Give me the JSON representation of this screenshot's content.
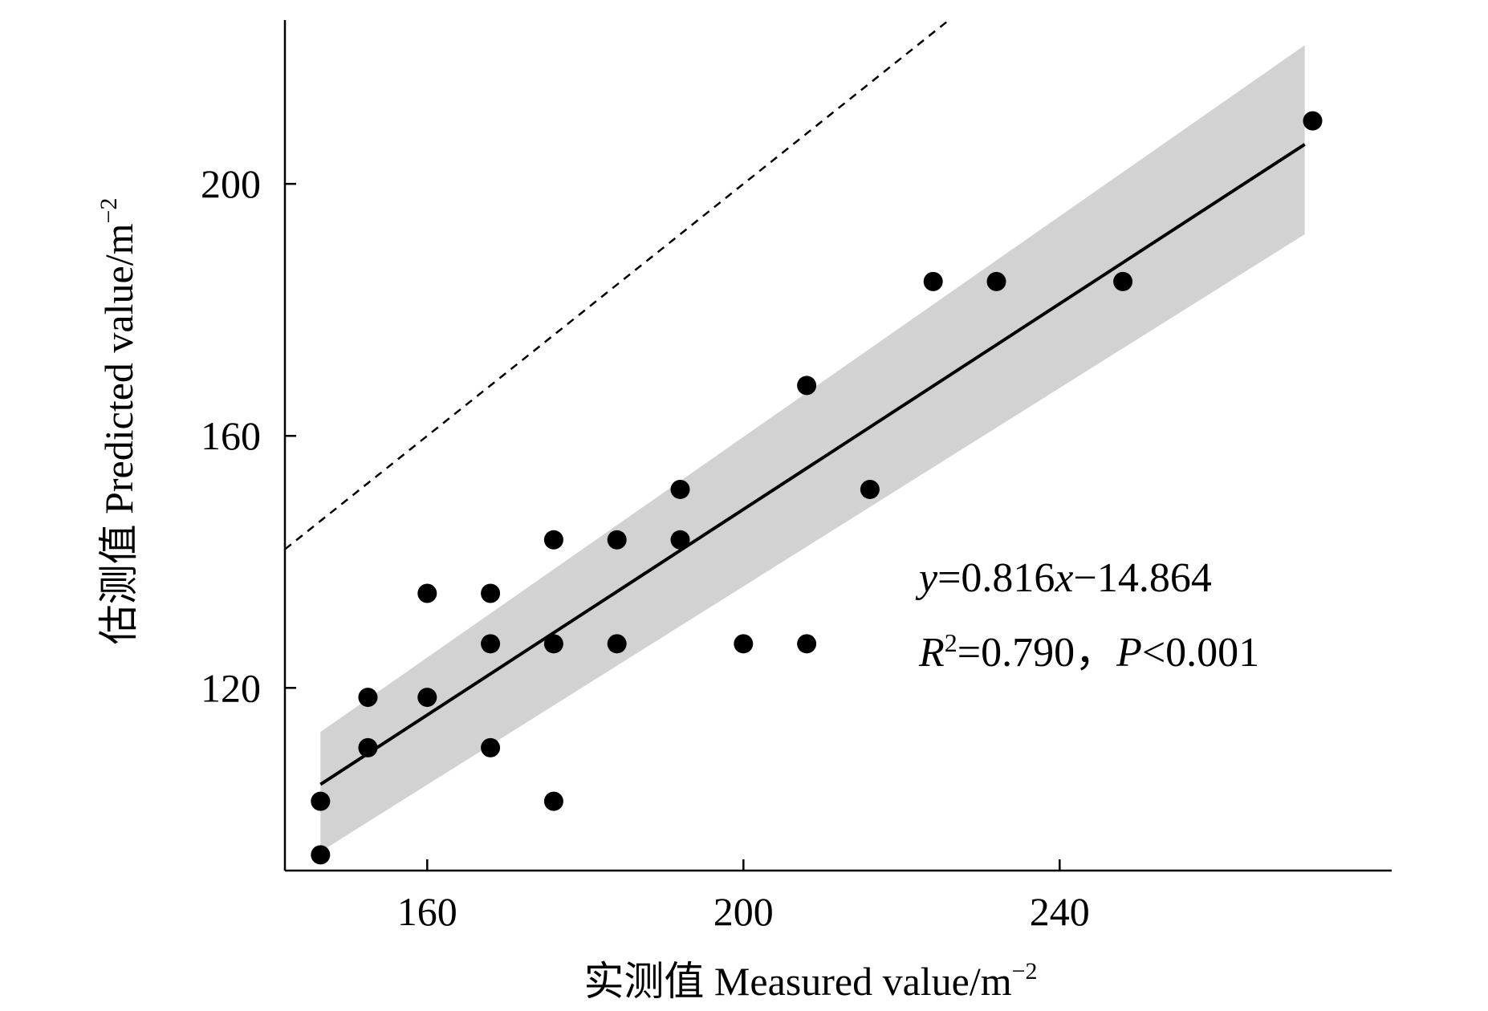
{
  "chart_data": {
    "type": "scatter",
    "xlabel": "实测值 Measured value/m",
    "xlabel_sup": "−2",
    "ylabel": "估测值 Predicted value/m",
    "ylabel_sup": "−2",
    "xlim": [
      142,
      282
    ],
    "ylim": [
      91,
      226
    ],
    "xticks": [
      160,
      200,
      240
    ],
    "yticks": [
      120,
      160,
      200
    ],
    "x_tick_labels": [
      "160",
      "200",
      "240"
    ],
    "y_tick_labels": [
      "120",
      "160",
      "200"
    ],
    "points": [
      {
        "x": 146.5,
        "y": 93.5
      },
      {
        "x": 146.5,
        "y": 102
      },
      {
        "x": 152.5,
        "y": 110.5
      },
      {
        "x": 152.5,
        "y": 118.5
      },
      {
        "x": 160,
        "y": 118.5
      },
      {
        "x": 160,
        "y": 135
      },
      {
        "x": 168,
        "y": 110.5
      },
      {
        "x": 168,
        "y": 127
      },
      {
        "x": 168,
        "y": 135
      },
      {
        "x": 176,
        "y": 102
      },
      {
        "x": 176,
        "y": 127
      },
      {
        "x": 176,
        "y": 143.5
      },
      {
        "x": 184,
        "y": 127
      },
      {
        "x": 184,
        "y": 143.5
      },
      {
        "x": 192,
        "y": 143.5
      },
      {
        "x": 192,
        "y": 151.5
      },
      {
        "x": 200,
        "y": 127
      },
      {
        "x": 208,
        "y": 127
      },
      {
        "x": 208,
        "y": 168
      },
      {
        "x": 216,
        "y": 151.5
      },
      {
        "x": 224,
        "y": 184.5
      },
      {
        "x": 232,
        "y": 184.5
      },
      {
        "x": 248,
        "y": 184.5
      },
      {
        "x": 272,
        "y": 210
      }
    ],
    "fit_line": {
      "slope": 0.816,
      "intercept": -14.864,
      "x_range": [
        146.5,
        271
      ]
    },
    "confidence_band": {
      "x": [
        146.5,
        271
      ],
      "lower": [
        94,
        192
      ],
      "upper": [
        113,
        222
      ]
    },
    "reference_line": {
      "type": "1:1",
      "style": "dashed"
    },
    "annotations": {
      "eq_y": "y",
      "eq_rest": "=0.816",
      "eq_x": "x",
      "eq_tail": "−14.864",
      "r": "R",
      "r_sup": "2",
      "r_rest": "=0.790，",
      "p": "P",
      "p_rest": "<0.001"
    },
    "colors": {
      "points": "#000000",
      "band": "#d2d2d2",
      "line": "#000000"
    }
  }
}
